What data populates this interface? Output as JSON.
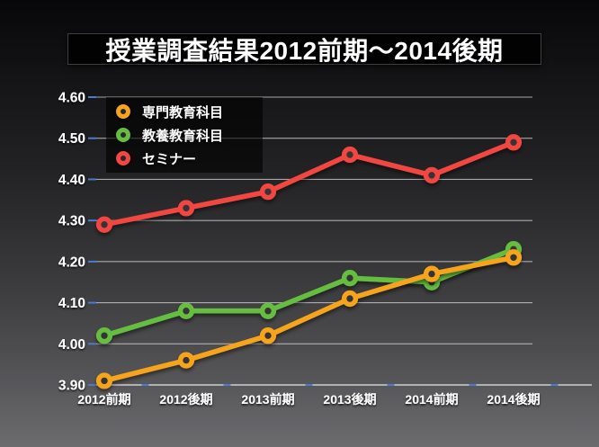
{
  "slide": {
    "title": "授業調査結果2012前期〜2014後期"
  },
  "chart_data": {
    "type": "line",
    "title": "授業調査結果2012前期〜2014後期",
    "categories": [
      "2012前期",
      "2012後期",
      "2013前期",
      "2013後期",
      "2014前期",
      "2014後期"
    ],
    "series": [
      {
        "name": "専門教育科目",
        "color": "#F6A41D",
        "values": [
          3.91,
          3.96,
          4.02,
          4.11,
          4.17,
          4.21
        ]
      },
      {
        "name": "教養教育科目",
        "color": "#65BE3F",
        "values": [
          4.02,
          4.08,
          4.08,
          4.16,
          4.15,
          4.23
        ]
      },
      {
        "name": "セミナー",
        "color": "#F24740",
        "values": [
          4.29,
          4.33,
          4.37,
          4.46,
          4.41,
          4.49
        ]
      }
    ],
    "ylim": [
      3.9,
      4.6
    ],
    "ytick_step": 0.1,
    "yticks": [
      "4.60",
      "4.50",
      "4.40",
      "4.30",
      "4.20",
      "4.10",
      "4.00",
      "3.90"
    ],
    "xlabel": "",
    "ylabel": "",
    "grid": true,
    "legend_position": "top-left",
    "draw_order": [
      1,
      0,
      2
    ]
  },
  "colors": {
    "text": "#ffffff",
    "grid": "#c9c9c9",
    "axis": "#d6d6d6",
    "tick_blue": "#4a7bd2",
    "marker_hole": "#353537",
    "title_box_bg": "#020203",
    "title_box_border": "#3e3e40",
    "legend_bg": "rgba(0,0,0,0.62)",
    "background_top": "#070709",
    "background_bottom": "#6c6c6f"
  }
}
